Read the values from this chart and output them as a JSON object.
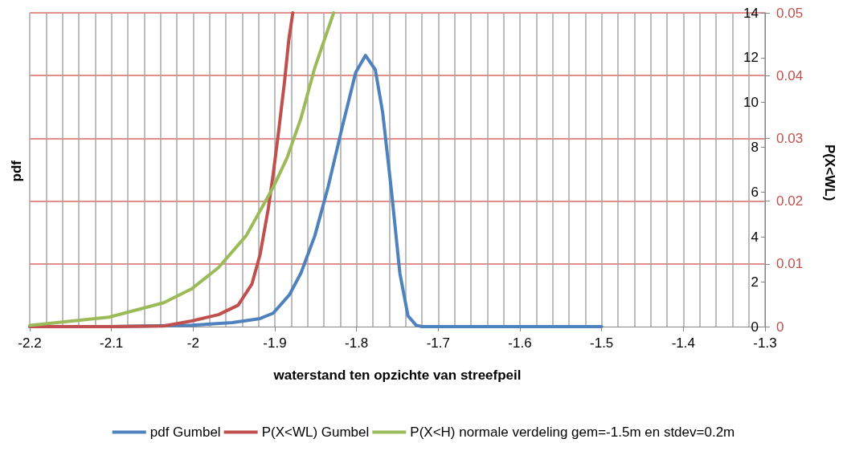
{
  "chart_data": {
    "type": "line",
    "xlabel": "waterstand ten opzichte van streefpeil",
    "ylabel": "pdf",
    "y2label": "P(X<WL)",
    "xlim": [
      -2.2,
      -1.3
    ],
    "xticks": [
      -2.2,
      -2.1,
      -2,
      -1.9,
      -1.8,
      -1.7,
      -1.6,
      -1.5,
      -1.4,
      -1.3
    ],
    "ylim": [
      0,
      14
    ],
    "yticks": [
      0,
      2,
      4,
      6,
      8,
      10,
      12,
      14
    ],
    "y2lim": [
      0,
      0.05
    ],
    "y2ticks": [
      0,
      0.01,
      0.02,
      0.03,
      0.04,
      0.05
    ],
    "grid": true,
    "legend": "bottom",
    "marker": "none",
    "line_style": "solid",
    "series": [
      {
        "name": "pdf Gumbel",
        "color": "#4f81bd",
        "x": [
          -2.2,
          -2.1,
          -2.002,
          -1.952,
          -1.918,
          -1.902,
          -1.882,
          -1.868,
          -1.851,
          -1.835,
          -1.818,
          -1.801,
          -1.789,
          -1.777,
          -1.768,
          -1.757,
          -1.747,
          -1.737,
          -1.727,
          -1.72,
          -1.6,
          -1.5
        ],
        "values": [
          0,
          0,
          0.06,
          0.18,
          0.36,
          0.6,
          1.43,
          2.39,
          4.06,
          6.2,
          8.83,
          11.34,
          12.1,
          11.46,
          9.55,
          5.97,
          2.39,
          0.48,
          0.06,
          0,
          0,
          0
        ]
      },
      {
        "name": "P(X<WL) Gumbel",
        "color": "#c0504d",
        "axis": "y2",
        "x": [
          -2.2,
          -2.1,
          -2.036,
          -2.002,
          -1.969,
          -1.945,
          -1.928,
          -1.918,
          -1.908,
          -1.902,
          -1.895,
          -1.888,
          -1.883,
          -1.878
        ],
        "values": [
          0,
          0,
          0.0001,
          0.0009,
          0.0019,
          0.0034,
          0.0068,
          0.0115,
          0.0188,
          0.0243,
          0.0315,
          0.0392,
          0.0456,
          0.05
        ]
      },
      {
        "name": "P(X<H) normale verdeling gem=-1.5m en stdev=0.2m",
        "color": "#9bbb59",
        "axis": "y2",
        "x": [
          -2.2,
          -2.103,
          -2.036,
          -2.002,
          -1.969,
          -1.935,
          -1.902,
          -1.885,
          -1.868,
          -1.851,
          -1.828
        ],
        "values": [
          0.0002,
          0.0015,
          0.0038,
          0.006,
          0.0094,
          0.0145,
          0.0222,
          0.0269,
          0.0332,
          0.0413,
          0.05
        ]
      }
    ]
  }
}
